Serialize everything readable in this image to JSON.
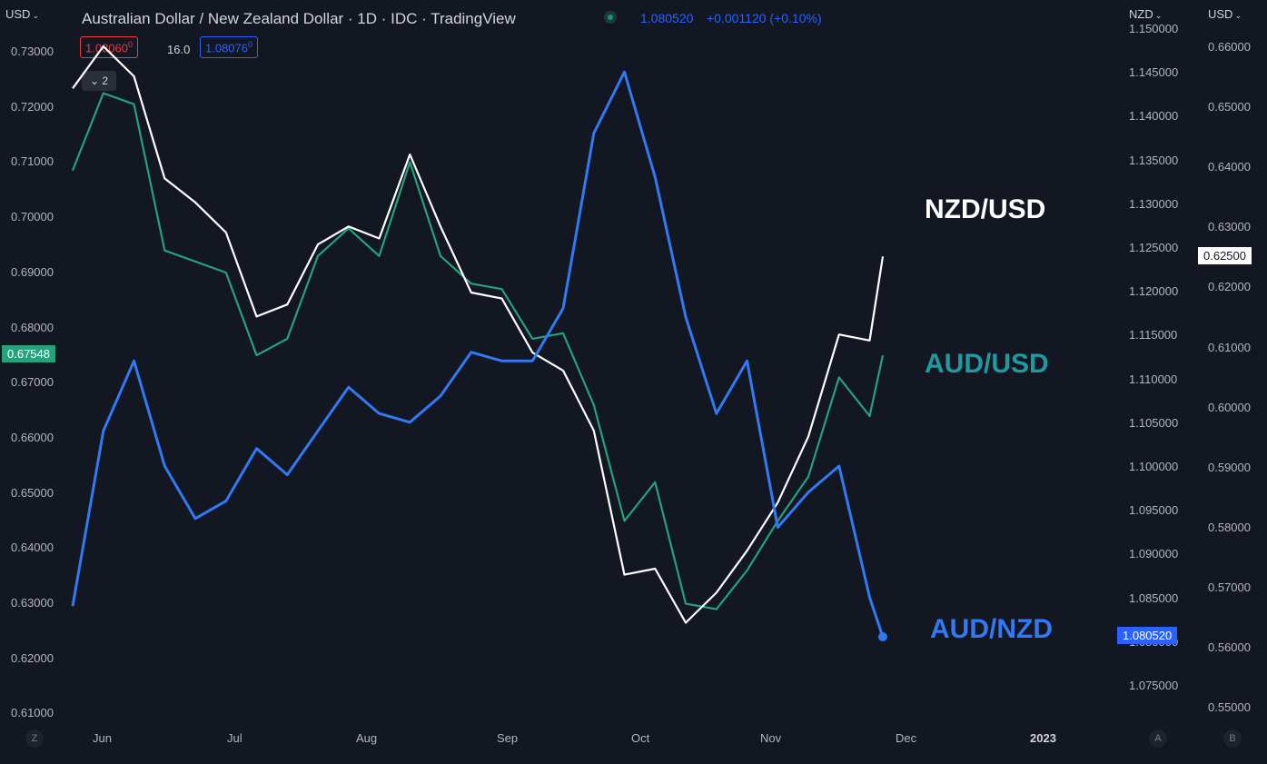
{
  "header": {
    "title": "Australian Dollar / New Zealand Dollar · 1D · IDC · TradingView",
    "last_price": "1.080520",
    "change": "+0.001120 (+0.10%)",
    "bid_box": "1.08060",
    "bid_box_sup": "0",
    "spread": "16.0",
    "ask_box": "1.08076",
    "ask_box_sup": "0",
    "collapse_label": "2",
    "status_color": "#089981"
  },
  "axes": {
    "left_currency": "USD",
    "right1_currency": "NZD",
    "right2_currency": "USD",
    "left_ticks": [
      "0.73000",
      "0.72000",
      "0.71000",
      "0.70000",
      "0.69000",
      "0.68000",
      "0.67000",
      "0.66000",
      "0.65000",
      "0.64000",
      "0.63000",
      "0.62000",
      "0.61000"
    ],
    "right1_ticks": [
      "1.150000",
      "1.145000",
      "1.140000",
      "1.135000",
      "1.130000",
      "1.125000",
      "1.120000",
      "1.115000",
      "1.110000",
      "1.105000",
      "1.100000",
      "1.095000",
      "1.090000",
      "1.085000",
      "1.080000",
      "1.075000"
    ],
    "right2_ticks": [
      "0.66000",
      "0.65000",
      "0.64000",
      "0.63000",
      "0.62000",
      "0.61000",
      "0.60000",
      "0.59000",
      "0.58000",
      "0.57000",
      "0.56000",
      "0.55000"
    ],
    "x_ticks": [
      "Jun",
      "Jul",
      "Aug",
      "Sep",
      "Oct",
      "Nov",
      "Dec",
      "2023"
    ],
    "corner_left": "Z",
    "corner_a": "A",
    "corner_b": "B"
  },
  "price_tags": {
    "audusd": "0.67548",
    "nzdusd": "0.62500",
    "audnzd": "1.080520"
  },
  "labels": {
    "nzdusd": "NZD/USD",
    "audusd": "AUD/USD",
    "audnzd": "AUD/NZD"
  },
  "colors": {
    "background": "#131722",
    "nzdusd": "#ffffff",
    "audusd": "#26a17b",
    "audnzd": "#3179f5",
    "audusd_label": "#1e9aa0",
    "bid": "#f23645",
    "ask": "#2962ff"
  },
  "chart_data": {
    "type": "line",
    "x": [
      "2022-05-24",
      "2022-05-31",
      "2022-06-07",
      "2022-06-14",
      "2022-06-21",
      "2022-06-28",
      "2022-07-05",
      "2022-07-12",
      "2022-07-19",
      "2022-07-26",
      "2022-08-02",
      "2022-08-09",
      "2022-08-16",
      "2022-08-23",
      "2022-08-30",
      "2022-09-06",
      "2022-09-13",
      "2022-09-20",
      "2022-09-27",
      "2022-10-04",
      "2022-10-11",
      "2022-10-18",
      "2022-10-25",
      "2022-11-01",
      "2022-11-08",
      "2022-11-15",
      "2022-11-22",
      "2022-11-25"
    ],
    "series": [
      {
        "name": "AUD/USD",
        "axis": "left",
        "values": [
          0.7085,
          0.7225,
          0.7205,
          0.694,
          0.692,
          0.69,
          0.675,
          0.678,
          0.693,
          0.698,
          0.693,
          0.71,
          0.693,
          0.688,
          0.687,
          0.678,
          0.679,
          0.666,
          0.645,
          0.652,
          0.63,
          0.629,
          0.636,
          0.645,
          0.653,
          0.671,
          0.664,
          0.675
        ]
      },
      {
        "name": "NZD/USD",
        "axis": "right2",
        "values": [
          0.653,
          0.66,
          0.655,
          0.638,
          0.634,
          0.629,
          0.615,
          0.617,
          0.627,
          0.63,
          0.628,
          0.642,
          0.63,
          0.619,
          0.618,
          0.609,
          0.606,
          0.596,
          0.572,
          0.573,
          0.564,
          0.569,
          0.576,
          0.584,
          0.595,
          0.612,
          0.611,
          0.625
        ]
      },
      {
        "name": "AUD/NZD",
        "axis": "right1",
        "values": [
          1.084,
          1.104,
          1.112,
          1.1,
          1.094,
          1.096,
          1.102,
          1.099,
          1.104,
          1.109,
          1.106,
          1.105,
          1.108,
          1.113,
          1.112,
          1.112,
          1.118,
          1.138,
          1.145,
          1.133,
          1.117,
          1.106,
          1.112,
          1.093,
          1.097,
          1.1,
          1.085,
          1.0805
        ]
      }
    ],
    "left_ylim": [
      0.61,
      0.73
    ],
    "right1_ylim": [
      1.075,
      1.15
    ],
    "right2_ylim": [
      0.55,
      0.66
    ],
    "grid": false
  }
}
